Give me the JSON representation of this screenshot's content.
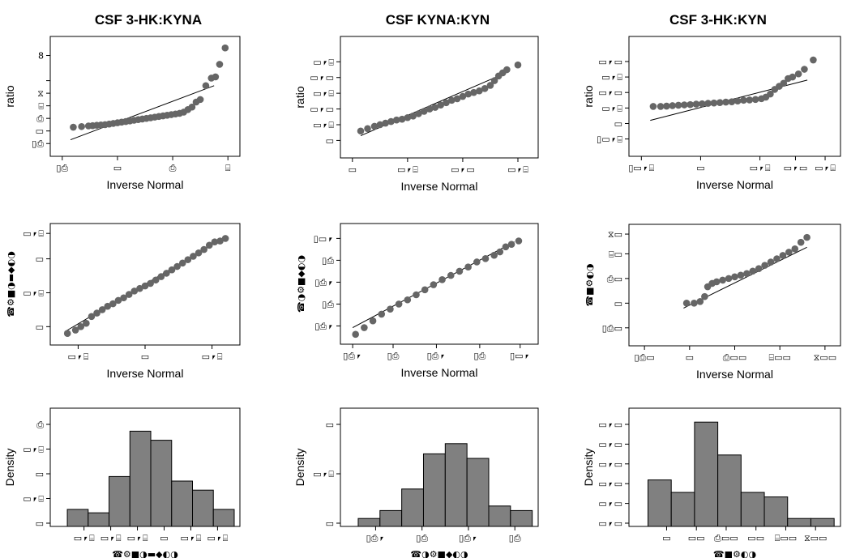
{
  "column_titles": [
    "CSF 3-HK:KYNA",
    "CSF KYNA:KYN",
    "CSF 3-HK:KYN"
  ],
  "chart_data": [
    {
      "type": "scatter",
      "title": "CSF 3-HK:KYNA",
      "xlabel": "Inverse Normal",
      "ylabel": "ratio",
      "xlim": [
        -3.2,
        3.2
      ],
      "ylim": [
        0.5,
        9.0
      ],
      "xticks": [
        -3,
        -1,
        1,
        3
      ],
      "xtick_labels": [
        "▯⎙",
        "▭",
        "⎙",
        "⌸"
      ],
      "yticks": [
        1,
        2,
        3,
        4,
        5,
        6,
        8
      ],
      "ytick_labels": [
        "▯⎙",
        "▭",
        "⎙",
        "⌸",
        "⧖",
        "",
        "8"
      ],
      "points": {
        "x": [
          -2.6,
          -2.3,
          -2.05,
          -1.9,
          -1.75,
          -1.6,
          -1.45,
          -1.3,
          -1.15,
          -1.0,
          -0.85,
          -0.7,
          -0.55,
          -0.4,
          -0.25,
          -0.1,
          0.05,
          0.2,
          0.35,
          0.5,
          0.65,
          0.8,
          0.95,
          1.1,
          1.25,
          1.4,
          1.55,
          1.7,
          1.85,
          2.0,
          2.2,
          2.4,
          2.55,
          2.7,
          2.9
        ],
        "y": [
          2.3,
          2.35,
          2.4,
          2.42,
          2.45,
          2.48,
          2.5,
          2.55,
          2.6,
          2.65,
          2.7,
          2.75,
          2.8,
          2.85,
          2.9,
          2.95,
          3.0,
          3.05,
          3.1,
          3.15,
          3.2,
          3.25,
          3.3,
          3.35,
          3.4,
          3.5,
          3.7,
          3.9,
          4.3,
          4.5,
          5.6,
          6.2,
          6.3,
          7.3,
          8.6
        ]
      },
      "fit_line": {
        "x": [
          -2.7,
          2.5
        ],
        "y": [
          1.3,
          5.6
        ]
      }
    },
    {
      "type": "scatter",
      "title": "CSF KYNA:KYN",
      "xlabel": "Inverse Normal",
      "ylabel": "ratio",
      "xlim": [
        -3.2,
        3.5
      ],
      "ylim": [
        0.3,
        7.2
      ],
      "xticks": [
        -3,
        -1,
        1,
        3
      ],
      "xtick_labels": [
        "▭",
        "▭⎖⌸",
        "▭⎖▭",
        "▭⎖⌸"
      ],
      "yticks": [
        1,
        2,
        3,
        4,
        5,
        6
      ],
      "ytick_labels": [
        "▭",
        "▭⎖⌸",
        "▭⎖▭",
        "▭⎖⌸",
        "▭⎖▭",
        "▭⎖⌸"
      ],
      "points": {
        "x": [
          -2.7,
          -2.45,
          -2.2,
          -2.0,
          -1.8,
          -1.6,
          -1.4,
          -1.2,
          -1.0,
          -0.8,
          -0.6,
          -0.4,
          -0.2,
          0.0,
          0.2,
          0.4,
          0.6,
          0.8,
          1.0,
          1.2,
          1.4,
          1.6,
          1.8,
          2.0,
          2.15,
          2.3,
          2.45,
          2.6,
          3.0
        ],
        "y": [
          1.6,
          1.75,
          1.9,
          2.0,
          2.1,
          2.2,
          2.3,
          2.35,
          2.45,
          2.55,
          2.7,
          2.85,
          3.0,
          3.1,
          3.25,
          3.4,
          3.55,
          3.65,
          3.8,
          3.95,
          4.05,
          4.15,
          4.3,
          4.5,
          4.8,
          5.1,
          5.3,
          5.5,
          5.8
        ]
      },
      "fit_line": {
        "x": [
          -2.7,
          2.7
        ],
        "y": [
          1.3,
          5.4
        ]
      }
    },
    {
      "type": "scatter",
      "title": "CSF 3-HK:KYN",
      "xlabel": "Inverse Normal",
      "ylabel": "ratio",
      "xlim": [
        -3.2,
        3.5
      ],
      "ylim": [
        0.3,
        7.2
      ],
      "xticks": [
        -3,
        -1,
        1,
        2.2,
        3.2
      ],
      "xtick_labels": [
        "▯▭⎖⌸",
        "▭",
        "▭⎖⌸",
        "▭⎖▭",
        "▭⎖⌸"
      ],
      "yticks": [
        1,
        2,
        3,
        4,
        5,
        6
      ],
      "ytick_labels": [
        "▯▭⎖⌸",
        "▭",
        "▭⎖⌸",
        "▭⎖▭",
        "▭⎖⌸",
        "▭⎖▭"
      ],
      "points": {
        "x": [
          -2.6,
          -2.35,
          -2.15,
          -1.95,
          -1.75,
          -1.55,
          -1.35,
          -1.15,
          -0.95,
          -0.75,
          -0.55,
          -0.35,
          -0.15,
          0.05,
          0.25,
          0.45,
          0.65,
          0.85,
          1.05,
          1.2,
          1.35,
          1.5,
          1.65,
          1.8,
          1.95,
          2.1,
          2.3,
          2.5,
          2.8
        ],
        "y": [
          3.1,
          3.1,
          3.12,
          3.15,
          3.18,
          3.2,
          3.22,
          3.25,
          3.27,
          3.3,
          3.32,
          3.35,
          3.38,
          3.4,
          3.45,
          3.5,
          3.52,
          3.55,
          3.6,
          3.7,
          3.9,
          4.2,
          4.4,
          4.6,
          4.9,
          5.0,
          5.2,
          5.5,
          6.1
        ]
      },
      "fit_line": {
        "x": [
          -2.7,
          2.6
        ],
        "y": [
          2.2,
          4.8
        ]
      }
    },
    {
      "type": "scatter",
      "title": "",
      "xlabel": "Inverse Normal",
      "ylabel": "☎⚙■◑▬◆◐◑",
      "xlim": [
        -3.3,
        3.3
      ],
      "ylim": [
        -3.2,
        3.2
      ],
      "xticks": [
        -2.5,
        0,
        2.5
      ],
      "xtick_labels": [
        "▭⎖⌸",
        "▭",
        "▭⎖⌸"
      ],
      "yticks": [
        -2.5,
        -0.5,
        1.5,
        3.0
      ],
      "ytick_labels": [
        "▭",
        "▭⎖⌸",
        "▭",
        "▭⎖⌸"
      ],
      "points": {
        "x": [
          -2.9,
          -2.6,
          -2.4,
          -2.2,
          -2.0,
          -1.8,
          -1.6,
          -1.4,
          -1.2,
          -1.0,
          -0.8,
          -0.6,
          -0.4,
          -0.2,
          0.0,
          0.2,
          0.4,
          0.6,
          0.8,
          1.0,
          1.2,
          1.4,
          1.6,
          1.8,
          2.0,
          2.2,
          2.4,
          2.6,
          2.8,
          3.0
        ],
        "y": [
          -2.9,
          -2.7,
          -2.5,
          -2.3,
          -1.9,
          -1.7,
          -1.5,
          -1.3,
          -1.15,
          -0.95,
          -0.8,
          -0.6,
          -0.4,
          -0.25,
          -0.1,
          0.05,
          0.25,
          0.45,
          0.65,
          0.85,
          1.05,
          1.25,
          1.45,
          1.65,
          1.85,
          2.05,
          2.3,
          2.5,
          2.55,
          2.7
        ]
      },
      "fit_line": {
        "x": [
          -3.0,
          3.0
        ],
        "y": [
          -2.8,
          2.8
        ]
      }
    },
    {
      "type": "scatter",
      "title": "",
      "xlabel": "Inverse Normal",
      "ylabel": "☎◑⚙■◆◐◑",
      "xlim": [
        -3.2,
        3.2
      ],
      "ylim": [
        -3.2,
        3.2
      ],
      "xticks": [
        -3.0,
        -1.6,
        -0.1,
        1.4,
        2.8
      ],
      "xtick_labels": [
        "▯⎙⎖",
        "▯⎙",
        "▯⎙⎖",
        "▯⎙",
        "▯▭⎖"
      ],
      "yticks": [
        -2.5,
        -1.2,
        0.1,
        1.4,
        2.7
      ],
      "ytick_labels": [
        "▯⎙⎖",
        "▯⎙",
        "▯⎙⎖",
        "▯⎙",
        "▯▭⎖"
      ],
      "points": {
        "x": [
          -2.9,
          -2.6,
          -2.3,
          -2.0,
          -1.7,
          -1.4,
          -1.1,
          -0.8,
          -0.5,
          -0.2,
          0.1,
          0.4,
          0.7,
          1.0,
          1.3,
          1.6,
          1.9,
          2.1,
          2.3,
          2.5,
          2.75
        ],
        "y": [
          -3.0,
          -2.6,
          -2.2,
          -1.8,
          -1.5,
          -1.2,
          -0.95,
          -0.65,
          -0.35,
          -0.05,
          0.25,
          0.5,
          0.75,
          1.0,
          1.3,
          1.5,
          1.7,
          1.9,
          2.2,
          2.35,
          2.55
        ]
      },
      "fit_line": {
        "x": [
          -3.0,
          2.6
        ],
        "y": [
          -2.6,
          2.5
        ]
      }
    },
    {
      "type": "scatter",
      "title": "",
      "xlabel": "Inverse Normal",
      "ylabel": "☎■⚙◐◑",
      "xlim": [
        -3.3,
        3.3
      ],
      "ylim": [
        -3.2,
        3.4
      ],
      "xticks": [
        -3.0,
        -1.5,
        0.0,
        1.5,
        3.0
      ],
      "xtick_labels": [
        "▯⎙▭",
        "▭",
        "⎙▭▭",
        "⌸▭▭",
        "⧖▭▭"
      ],
      "yticks": [
        -2.5,
        -1.0,
        0.5,
        2.0,
        3.2
      ],
      "ytick_labels": [
        "▯⎙▭",
        "▭",
        "⎙▭",
        "⌸▭",
        "⧖▭"
      ],
      "points": {
        "x": [
          -1.6,
          -1.35,
          -1.15,
          -1.0,
          -0.9,
          -0.75,
          -0.6,
          -0.4,
          -0.2,
          0.0,
          0.2,
          0.4,
          0.6,
          0.8,
          1.0,
          1.2,
          1.4,
          1.6,
          1.8,
          2.0,
          2.2,
          2.4
        ],
        "y": [
          -1.0,
          -1.0,
          -0.9,
          -0.6,
          0.0,
          0.2,
          0.3,
          0.4,
          0.5,
          0.6,
          0.7,
          0.8,
          0.95,
          1.1,
          1.3,
          1.5,
          1.7,
          1.9,
          2.1,
          2.3,
          2.7,
          3.0
        ]
      },
      "fit_line": {
        "x": [
          -1.7,
          2.4
        ],
        "y": [
          -1.3,
          2.4
        ]
      }
    },
    {
      "type": "bar",
      "title": "",
      "xlabel": "☎⚙■◑▬◆◐◑",
      "ylabel": "Density",
      "ylim": [
        0,
        1.0
      ],
      "xtick_labels": [
        "▭⎖⌸",
        "▭⎖⌸",
        "▭⎖⌸",
        "▭",
        "▭⎖⌸",
        "▭⎖⌸"
      ],
      "ytick_labels": [
        "▭",
        "▭⎖⌸",
        "▭",
        "▭⎖⌸",
        "⎙"
      ],
      "values": [
        0.15,
        0.12,
        0.44,
        0.84,
        0.76,
        0.4,
        0.32,
        0.15
      ]
    },
    {
      "type": "bar",
      "title": "",
      "xlabel": "☎◑⚙■◆◐◑",
      "ylabel": "Density",
      "ylim": [
        0,
        1.0
      ],
      "xtick_labels": [
        "▯⎙⎖",
        "▯⎙",
        "▯⎙⎖",
        "▯⎙"
      ],
      "ytick_labels": [
        "▭",
        "▭⎖⌸",
        "▭"
      ],
      "values": [
        0.07,
        0.14,
        0.33,
        0.64,
        0.73,
        0.6,
        0.18,
        0.14
      ]
    },
    {
      "type": "bar",
      "title": "",
      "xlabel": "☎■⚙◐◑",
      "ylabel": "Density",
      "ylim": [
        0,
        1.0
      ],
      "xtick_labels": [
        "▭",
        "▭▭",
        "⎙▭▭",
        "▭▭",
        "⌸▭▭",
        "⧖▭▭"
      ],
      "ytick_labels": [
        "▭⎖▭",
        "▭⎖▭",
        "▭⎖▭",
        "▭⎖▭",
        "▭⎖▭",
        "▭⎖▭"
      ],
      "values": [
        0.41,
        0.3,
        0.92,
        0.63,
        0.3,
        0.26,
        0.07,
        0.07
      ]
    }
  ]
}
